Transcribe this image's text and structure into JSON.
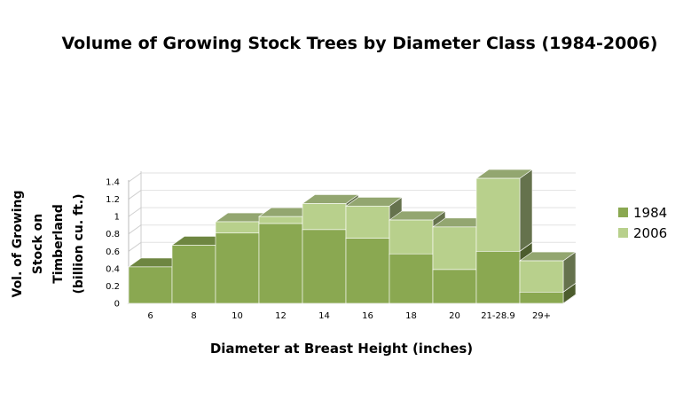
{
  "chart_data": {
    "type": "bar",
    "title": "Volume of Growing Stock Trees by Diameter Class (1984-2006)",
    "xlabel": "Diameter at Breast Height (inches)",
    "ylabel_lines": [
      "Vol. of Growing",
      "Stock on",
      "Timberland",
      "(billion cu. ft.)"
    ],
    "categories": [
      "6",
      "8",
      "10",
      "12",
      "14",
      "16",
      "18",
      "20",
      "21-28.9",
      "29+"
    ],
    "yticks": [
      "0",
      "0.2",
      "0.4",
      "0.6",
      "0.8",
      "1",
      "1.2",
      "1.4"
    ],
    "ylim": [
      0,
      1.4
    ],
    "legend_position": "right",
    "series": [
      {
        "name": "1984",
        "color": "#8aa851",
        "values": [
          0.42,
          0.67,
          0.81,
          0.92,
          0.85,
          0.75,
          0.57,
          0.39,
          0.6,
          0.13
        ]
      },
      {
        "name": "2006",
        "color": "#b8d08c",
        "values": [
          0.42,
          0.67,
          0.94,
          1.0,
          1.15,
          1.12,
          0.96,
          0.88,
          1.44,
          0.49
        ]
      }
    ]
  }
}
